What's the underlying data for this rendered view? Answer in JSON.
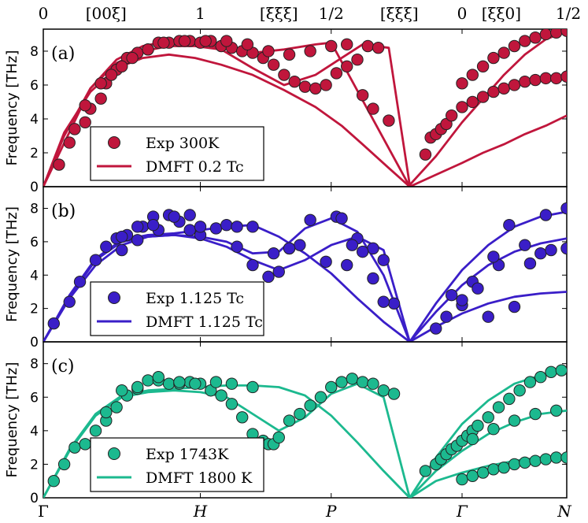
{
  "chart_data": {
    "type": "scatter",
    "title": "",
    "xlabel": "",
    "top_labels": [
      "0",
      "[00ξ]",
      "1",
      "[ξξξ]",
      "1/2",
      "[ξξξ]",
      "0",
      "[ξξ0]",
      "1/2"
    ],
    "bottom_labels": [
      "Γ",
      "H",
      "P",
      "Γ",
      "N"
    ],
    "xlim": [
      0,
      1.0
    ],
    "ylim": [
      0,
      9.3
    ],
    "yticks": [
      0,
      2,
      4,
      6,
      8
    ],
    "panels": [
      {
        "label": "(a)",
        "ylabel": "Frequency [THz]",
        "color": "#c0163c",
        "exp_label": "Exp  300K",
        "dmft_label": "DMFT 0.2 Tc",
        "lines": [
          {
            "x": [
              0,
              0.04,
              0.09,
              0.14,
              0.19,
              0.24,
              0.29,
              0.34,
              0.4,
              0.46,
              0.52,
              0.57,
              0.61,
              0.66,
              0.7,
              0.75,
              0.8,
              0.84,
              0.88,
              0.92,
              0.96,
              1.0
            ],
            "y": [
              0,
              3.2,
              5.6,
              7.0,
              7.6,
              7.8,
              7.6,
              7.2,
              6.6,
              5.7,
              4.7,
              3.6,
              2.5,
              1.1,
              0,
              0.7,
              1.4,
              2.0,
              2.5,
              3.1,
              3.6,
              4.2
            ]
          },
          {
            "x": [
              0,
              0.04,
              0.09,
              0.14,
              0.19,
              0.24,
              0.29,
              0.34,
              0.4,
              0.46,
              0.52,
              0.57,
              0.61,
              0.66,
              0.7,
              0.75,
              0.8,
              0.84,
              0.88,
              0.92,
              0.96,
              1.0
            ],
            "y": [
              0,
              3.0,
              5.8,
              7.3,
              8.0,
              8.3,
              8.3,
              8.1,
              7.0,
              6.0,
              6.6,
              7.6,
              8.4,
              8.2,
              0.1,
              1.8,
              3.8,
              5.2,
              6.6,
              7.8,
              8.7,
              9.2
            ]
          },
          {
            "x": [
              0,
              0.09,
              0.14,
              0.19,
              0.24,
              0.29,
              0.34,
              0.4,
              0.46,
              0.52,
              0.55,
              0.7
            ],
            "y": [
              0,
              5.8,
              7.5,
              8.3,
              8.6,
              8.5,
              8.2,
              7.9,
              8.1,
              8.4,
              8.5,
              0
            ]
          }
        ],
        "exp": {
          "x": [
            0.03,
            0.05,
            0.06,
            0.08,
            0.09,
            0.11,
            0.12,
            0.14,
            0.16,
            0.18,
            0.2,
            0.22,
            0.24,
            0.26,
            0.28,
            0.3,
            0.32,
            0.34,
            0.36,
            0.38,
            0.4,
            0.42,
            0.44,
            0.46,
            0.48,
            0.5,
            0.52,
            0.54,
            0.56,
            0.58,
            0.6,
            0.62,
            0.64,
            0.73,
            0.74,
            0.75,
            0.76,
            0.77,
            0.78,
            0.8,
            0.82,
            0.84,
            0.86,
            0.88,
            0.9,
            0.92,
            0.94,
            0.96,
            0.98,
            1.0,
            0.08,
            0.11,
            0.13,
            0.15,
            0.17,
            0.2,
            0.23,
            0.27,
            0.31,
            0.35,
            0.39,
            0.43,
            0.47,
            0.51,
            0.55,
            0.58,
            0.61,
            0.63,
            0.66
          ],
          "y": [
            1.3,
            2.6,
            3.4,
            3.8,
            4.6,
            5.2,
            6.1,
            6.9,
            7.6,
            7.9,
            8.1,
            8.5,
            8.5,
            8.6,
            8.6,
            8.5,
            8.6,
            8.3,
            8.2,
            8.0,
            7.9,
            7.6,
            7.2,
            6.6,
            6.2,
            5.9,
            5.8,
            6.0,
            6.7,
            7.1,
            7.5,
            8.3,
            8.2,
            1.9,
            2.9,
            3.1,
            3.4,
            3.7,
            4.2,
            4.7,
            5.0,
            5.3,
            5.6,
            5.8,
            6.0,
            6.2,
            6.3,
            6.4,
            6.4,
            6.5,
            4.8,
            6.1,
            6.6,
            7.1,
            7.6,
            8.1,
            8.5,
            8.6,
            8.6,
            8.6,
            8.4,
            8.0,
            7.8,
            8.0,
            8.3,
            8.4,
            5.4,
            4.6,
            3.9
          ],
          "x2": [
            0.8,
            0.82,
            0.84,
            0.86,
            0.88,
            0.9,
            0.92,
            0.94,
            0.96,
            0.98,
            1.0
          ],
          "y2": [
            6.1,
            6.6,
            7.1,
            7.6,
            7.9,
            8.3,
            8.6,
            8.8,
            9.0,
            9.1,
            9.2
          ]
        }
      },
      {
        "label": "(b)",
        "ylabel": "Frequency [THz]",
        "color": "#3a1ec8",
        "exp_label": "Exp   1.125 Tc",
        "dmft_label": "DMFT 1.125 Tc",
        "lines": [
          {
            "x": [
              0,
              0.05,
              0.1,
              0.15,
              0.2,
              0.25,
              0.3,
              0.35,
              0.4,
              0.45,
              0.5,
              0.55,
              0.6,
              0.65,
              0.7,
              0.75,
              0.8,
              0.85,
              0.9,
              0.95,
              1.0
            ],
            "y": [
              0,
              2.6,
              4.6,
              5.8,
              6.3,
              6.4,
              6.2,
              5.7,
              4.9,
              4.3,
              4.9,
              5.8,
              6.3,
              5.5,
              0,
              0.9,
              1.7,
              2.3,
              2.7,
              2.9,
              3.0
            ]
          },
          {
            "x": [
              0,
              0.05,
              0.1,
              0.15,
              0.2,
              0.25,
              0.3,
              0.35,
              0.4,
              0.45,
              0.5,
              0.55,
              0.6,
              0.65,
              0.7
            ],
            "y": [
              0,
              2.8,
              5.0,
              6.1,
              6.4,
              6.5,
              6.7,
              6.9,
              7.0,
              6.3,
              5.3,
              4.1,
              2.6,
              1.2,
              0
            ]
          },
          {
            "x": [
              0,
              0.05,
              0.1,
              0.15,
              0.2,
              0.25,
              0.3,
              0.35,
              0.4,
              0.45,
              0.5,
              0.55,
              0.6,
              0.65,
              0.7
            ],
            "y": [
              0,
              2.7,
              4.9,
              6.0,
              6.3,
              6.4,
              6.3,
              6.0,
              5.3,
              5.4,
              6.8,
              7.4,
              6.6,
              4.0,
              0
            ]
          },
          {
            "x": [
              0.7,
              0.75,
              0.8,
              0.85,
              0.9,
              0.95,
              1.0
            ],
            "y": [
              0,
              1.8,
              3.4,
              4.6,
              5.4,
              5.9,
              6.2
            ]
          },
          {
            "x": [
              0.7,
              0.75,
              0.8,
              0.85,
              0.9,
              0.95,
              1.0
            ],
            "y": [
              0,
              2.3,
              4.3,
              5.8,
              6.9,
              7.5,
              7.8
            ]
          }
        ],
        "exp": {
          "x": [
            0.02,
            0.05,
            0.07,
            0.1,
            0.12,
            0.14,
            0.15,
            0.16,
            0.18,
            0.19,
            0.21,
            0.22,
            0.24,
            0.26,
            0.28,
            0.3,
            0.33,
            0.37,
            0.4,
            0.43,
            0.45,
            0.47,
            0.49,
            0.51,
            0.54,
            0.56,
            0.58,
            0.6,
            0.63,
            0.65,
            0.67,
            0.78,
            0.8,
            0.82,
            0.85,
            0.87,
            0.9,
            0.93,
            0.95,
            0.97,
            1.0,
            0.15,
            0.18,
            0.21,
            0.25,
            0.28,
            0.3,
            0.35,
            0.37,
            0.4,
            0.44,
            0.47,
            0.57,
            0.59,
            0.61,
            0.63,
            0.65
          ],
          "y": [
            1.1,
            2.4,
            3.6,
            4.9,
            5.7,
            6.2,
            5.5,
            6.4,
            6.1,
            6.9,
            7.5,
            6.7,
            7.6,
            7.2,
            7.6,
            6.4,
            6.8,
            5.7,
            4.6,
            3.9,
            4.2,
            5.6,
            5.8,
            7.3,
            4.8,
            7.5,
            4.6,
            6.2,
            5.6,
            4.9,
            2.3,
            2.8,
            2.2,
            3.6,
            1.5,
            4.6,
            2.1,
            4.7,
            5.3,
            5.5,
            5.6,
            6.3,
            6.9,
            7.0,
            7.5,
            6.7,
            6.9,
            7.0,
            6.9,
            6.9,
            5.3,
            5.6,
            7.4,
            5.8,
            5.4,
            3.8,
            2.4
          ],
          "x2": [
            0.75,
            0.77,
            0.8,
            0.83,
            0.86,
            0.89,
            0.92,
            0.96,
            1.0
          ],
          "y2": [
            0.8,
            1.5,
            2.5,
            3.2,
            5.1,
            7.0,
            5.8,
            7.6,
            8.0
          ]
        }
      },
      {
        "label": "(c)",
        "ylabel": "Frequency [THz]",
        "color": "#1cb98f",
        "exp_label": "Exp 1743K",
        "dmft_label": "DMFT 1800 K",
        "lines": [
          {
            "x": [
              0,
              0.05,
              0.1,
              0.15,
              0.2,
              0.25,
              0.3,
              0.35,
              0.4,
              0.45,
              0.5,
              0.55,
              0.6,
              0.65,
              0.7,
              0.75,
              0.8,
              0.85,
              0.9,
              0.95,
              1.0
            ],
            "y": [
              0,
              2.8,
              4.9,
              6.0,
              6.3,
              6.4,
              6.3,
              6.0,
              5.0,
              4.0,
              4.8,
              6.2,
              6.8,
              6.0,
              0,
              1.0,
              1.5,
              1.9,
              2.2,
              2.4,
              2.5
            ]
          },
          {
            "x": [
              0,
              0.05,
              0.1,
              0.15,
              0.2,
              0.25,
              0.3,
              0.35,
              0.4,
              0.45,
              0.5,
              0.55,
              0.6,
              0.65,
              0.7
            ],
            "y": [
              0,
              2.9,
              5.0,
              6.1,
              6.4,
              6.5,
              6.6,
              6.7,
              6.7,
              6.6,
              6.1,
              4.9,
              3.3,
              1.6,
              0
            ]
          },
          {
            "x": [
              0.7,
              0.75,
              0.8,
              0.85,
              0.9,
              0.95,
              1.0
            ],
            "y": [
              0,
              1.6,
              2.8,
              3.8,
              4.5,
              5.0,
              5.2
            ]
          },
          {
            "x": [
              0.7,
              0.75,
              0.8,
              0.85,
              0.9,
              0.95,
              1.0
            ],
            "y": [
              0,
              2.4,
              4.4,
              5.8,
              6.8,
              7.3,
              7.6
            ]
          }
        ],
        "exp": {
          "x": [
            0.02,
            0.04,
            0.06,
            0.08,
            0.1,
            0.12,
            0.14,
            0.16,
            0.18,
            0.2,
            0.22,
            0.24,
            0.26,
            0.28,
            0.3,
            0.32,
            0.34,
            0.36,
            0.38,
            0.4,
            0.42,
            0.43,
            0.44,
            0.45,
            0.47,
            0.49,
            0.51,
            0.53,
            0.55,
            0.57,
            0.59,
            0.61,
            0.63,
            0.65,
            0.67,
            0.73,
            0.75,
            0.76,
            0.77,
            0.78,
            0.79,
            0.8,
            0.81,
            0.82,
            0.83,
            0.85,
            0.87,
            0.89,
            0.91,
            0.93,
            0.95,
            0.97,
            0.99,
            0.12,
            0.15,
            0.18,
            0.22,
            0.26,
            0.29,
            0.33,
            0.36,
            0.4
          ],
          "y": [
            1.0,
            2.0,
            3.0,
            3.2,
            4.0,
            4.6,
            5.4,
            6.1,
            6.5,
            7.0,
            7.0,
            6.8,
            6.8,
            6.9,
            6.8,
            6.4,
            6.1,
            5.6,
            4.8,
            3.8,
            3.4,
            3.2,
            3.2,
            3.6,
            4.6,
            5.0,
            5.5,
            6.0,
            6.6,
            6.9,
            7.1,
            6.9,
            6.8,
            6.4,
            6.2,
            1.6,
            2.0,
            2.3,
            2.6,
            2.9,
            3.1,
            3.4,
            3.7,
            4.0,
            4.3,
            4.8,
            5.4,
            5.9,
            6.4,
            6.9,
            7.2,
            7.5,
            7.6,
            5.1,
            6.4,
            6.6,
            7.2,
            6.9,
            6.8,
            6.9,
            6.8,
            6.6
          ],
          "x2": [
            0.8,
            0.82,
            0.84,
            0.86,
            0.88,
            0.9,
            0.92,
            0.94,
            0.96,
            0.98,
            1.0,
            0.82,
            0.86,
            0.9,
            0.94,
            0.98
          ],
          "y2": [
            1.1,
            1.3,
            1.5,
            1.7,
            1.8,
            2.0,
            2.1,
            2.2,
            2.3,
            2.4,
            2.4,
            3.5,
            4.1,
            4.6,
            5.0,
            5.2
          ]
        }
      }
    ]
  }
}
